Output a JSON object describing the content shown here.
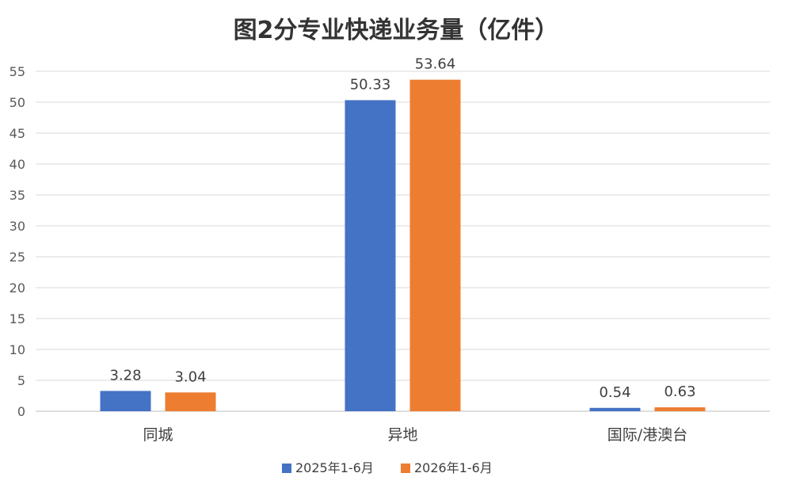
{
  "chart_data": {
    "type": "bar",
    "title": "图2分专业快递业务量（亿件）",
    "categories": [
      "同城",
      "异地",
      "国际/港澳台"
    ],
    "series": [
      {
        "name": "2025年1-6月",
        "color": "#4472C4",
        "values": [
          3.28,
          50.33,
          0.54
        ],
        "labels": [
          "3.28",
          "50.33",
          "0.54"
        ]
      },
      {
        "name": "2026年1-6月",
        "color": "#ED7D31",
        "values": [
          3.04,
          53.64,
          0.63
        ],
        "labels": [
          "3.04",
          "53.64",
          "0.63"
        ]
      }
    ],
    "ylim": [
      0,
      55
    ],
    "yticks": [
      "0",
      "5",
      "10",
      "15",
      "20",
      "25",
      "30",
      "35",
      "40",
      "45",
      "50",
      "55"
    ],
    "grid": true,
    "legend": "bottom"
  }
}
